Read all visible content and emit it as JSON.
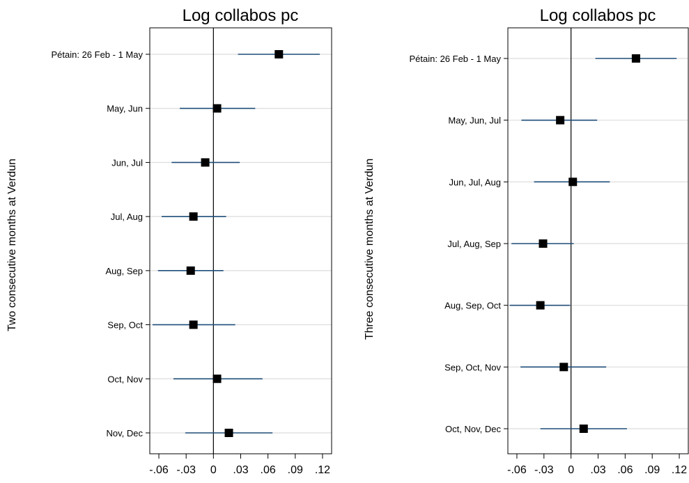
{
  "chart_data": [
    {
      "type": "coefficient-plot",
      "title": "Log collabos pc",
      "ylabel": "Two consecutive months at Verdun",
      "xlabel": "",
      "xlim": [
        -0.07,
        0.13
      ],
      "xticks": [
        -0.06,
        -0.03,
        0,
        0.03,
        0.06,
        0.09,
        0.12
      ],
      "xtick_labels": [
        "-.06",
        "-.03",
        "0",
        ".03",
        ".06",
        ".09",
        ".12"
      ],
      "zero_line": 0,
      "categories": [
        "Pétain: 26 Feb - 1 May",
        "May, Jun",
        "Jun, Jul",
        "Jul, Aug",
        "Aug, Sep",
        "Sep, Oct",
        "Oct, Nov",
        "Nov, Dec"
      ],
      "estimates": [
        0.072,
        0.004,
        -0.009,
        -0.022,
        -0.025,
        -0.022,
        0.004,
        0.017
      ],
      "ci_low": [
        0.027,
        -0.037,
        -0.046,
        -0.057,
        -0.061,
        -0.067,
        -0.044,
        -0.031
      ],
      "ci_high": [
        0.117,
        0.046,
        0.029,
        0.014,
        0.011,
        0.024,
        0.054,
        0.065
      ],
      "grid": "horizontal"
    },
    {
      "type": "coefficient-plot",
      "title": "Log collabos pc",
      "ylabel": "Three consecutive months at Verdun",
      "xlabel": "",
      "xlim": [
        -0.07,
        0.13
      ],
      "xticks": [
        -0.06,
        -0.03,
        0,
        0.03,
        0.06,
        0.09,
        0.12
      ],
      "xtick_labels": [
        "-.06",
        "-.03",
        "0",
        ".03",
        ".06",
        ".09",
        ".12"
      ],
      "zero_line": 0,
      "categories": [
        "Pétain: 26 Feb - 1 May",
        "May, Jun, Jul",
        "Jun, Jul, Aug",
        "Jul, Aug, Sep",
        "Aug, Sep, Oct",
        "Sep, Oct, Nov",
        "Oct, Nov, Dec"
      ],
      "estimates": [
        0.072,
        -0.012,
        0.002,
        -0.031,
        -0.034,
        -0.008,
        0.014
      ],
      "ci_low": [
        0.027,
        -0.055,
        -0.041,
        -0.066,
        -0.068,
        -0.056,
        -0.034
      ],
      "ci_high": [
        0.117,
        0.029,
        0.043,
        0.003,
        -0.001,
        0.039,
        0.062
      ],
      "grid": "horizontal"
    }
  ],
  "colors": {
    "ci_line": "#1f4e79",
    "marker": "#000000",
    "grid": "#dcdcdc",
    "axis": "#000000"
  }
}
